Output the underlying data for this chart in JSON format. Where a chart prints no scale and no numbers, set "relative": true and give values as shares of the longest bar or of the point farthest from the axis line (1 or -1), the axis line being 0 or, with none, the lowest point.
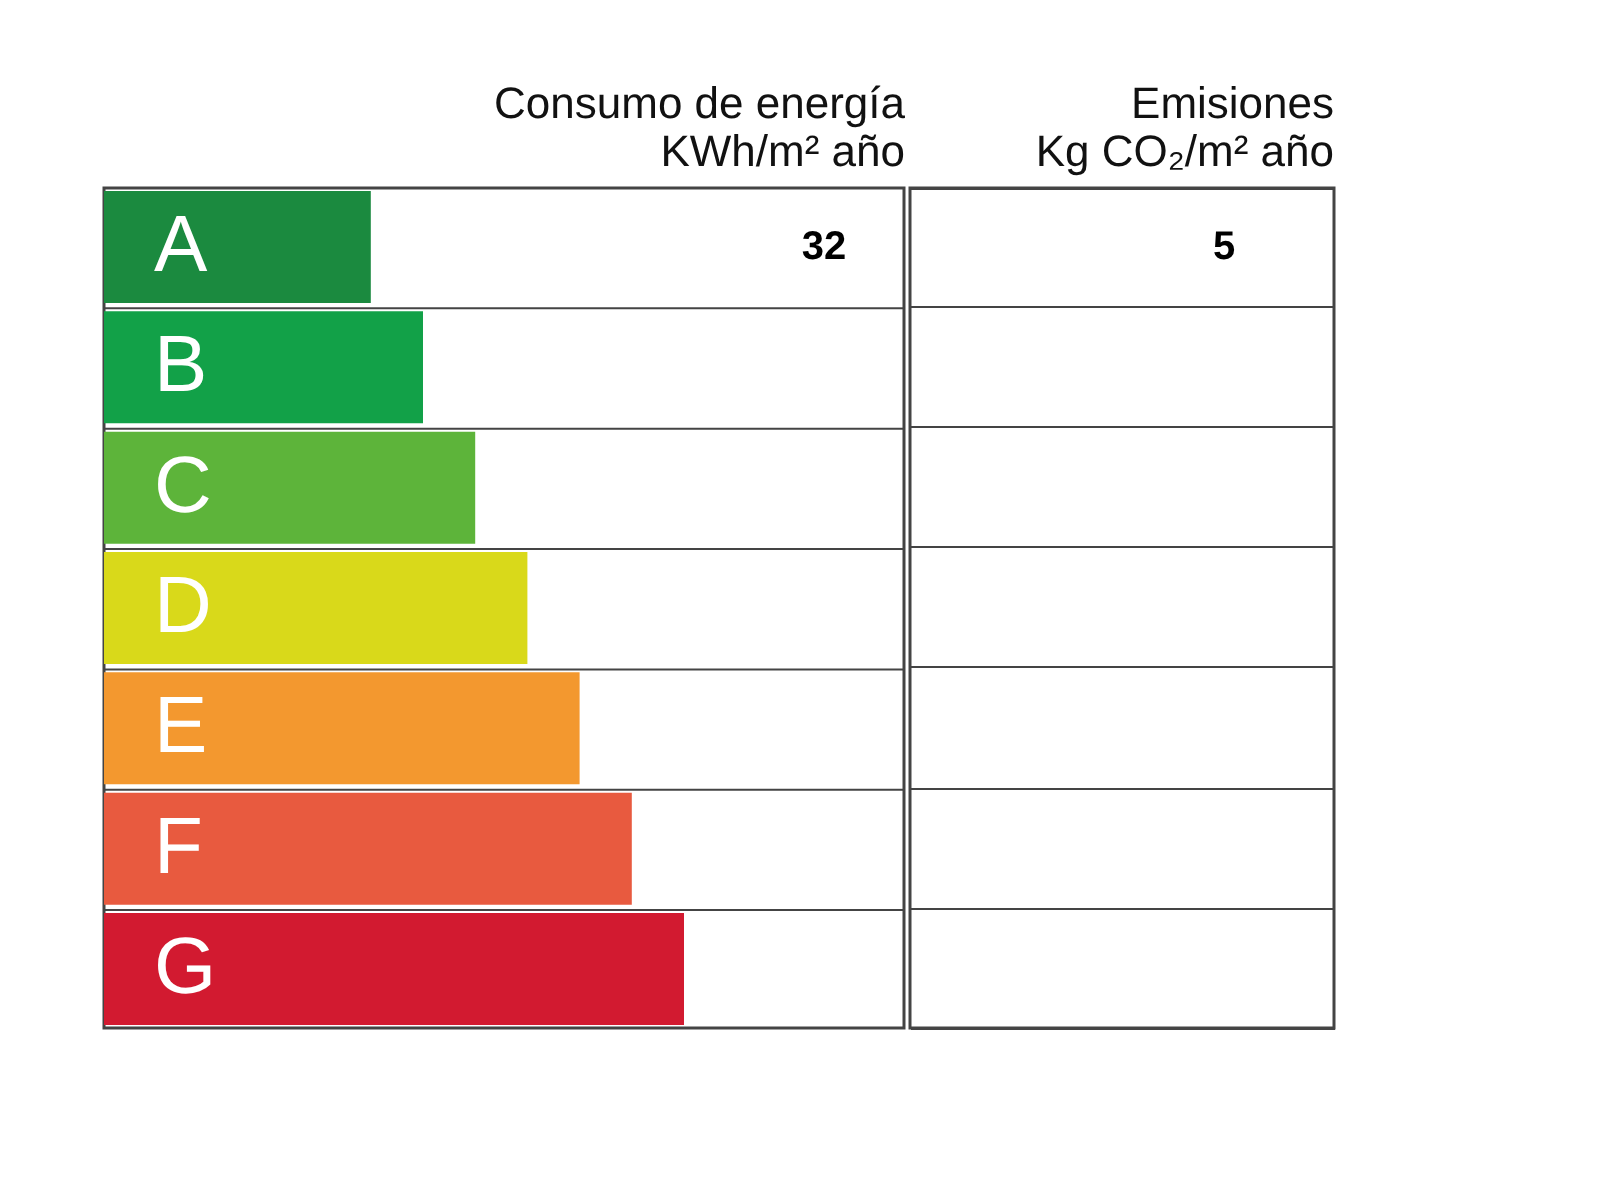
{
  "chart_data": {
    "type": "bar",
    "orientation": "horizontal",
    "relative": true,
    "categories": [
      "A",
      "B",
      "C",
      "D",
      "E",
      "F",
      "G"
    ],
    "values": [
      0.46,
      0.55,
      0.64,
      0.73,
      0.82,
      0.91,
      1
    ],
    "colors": [
      "#1b8a3f",
      "#12a148",
      "#5db43a",
      "#d9d91a",
      "#f3982f",
      "#e85a3f",
      "#d21a30"
    ],
    "grid": "y",
    "annotations": [
      "Consumo de energía\nKWh/m² año",
      "Emisiones\nKg CO₂/m² año",
      "32",
      "5"
    ]
  }
}
